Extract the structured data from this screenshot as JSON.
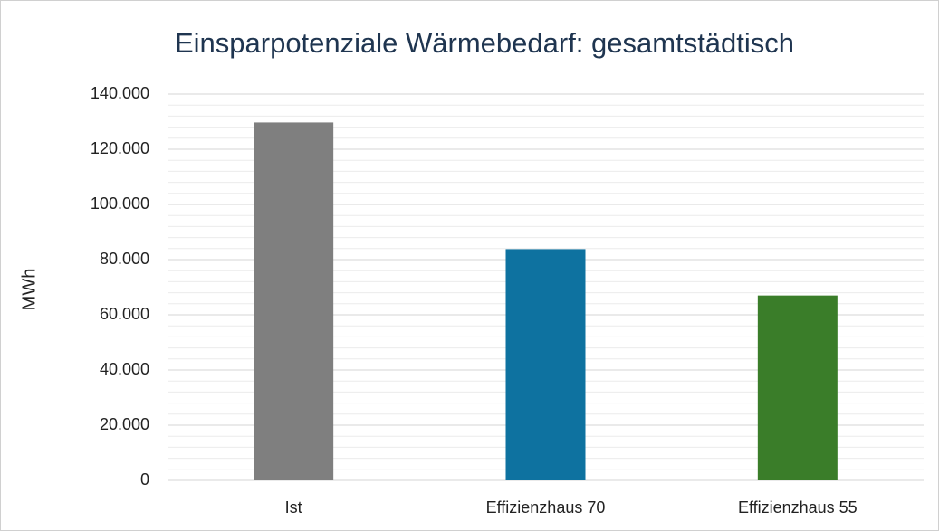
{
  "chart_data": {
    "type": "bar",
    "title": "Einsparpotenziale Wärmebedarf: gesamtstädtisch",
    "y_label": "MWh",
    "categories": [
      "Ist",
      "Effizienzhaus 70",
      "Effizienzhaus 55"
    ],
    "values": [
      129700,
      83800,
      67000
    ],
    "colors": [
      "#7f7f7f",
      "#0e72a0",
      "#3a7d29"
    ],
    "ylim": [
      0,
      140000
    ],
    "yticks": [
      0,
      {
        "value": 20000,
        "label": "20.000"
      },
      {
        "value": 40000,
        "label": "40.000"
      },
      {
        "value": 60000,
        "label": "60.000"
      },
      {
        "value": 80000,
        "label": "80.000"
      },
      {
        "value": 100000,
        "label": "100.000"
      },
      {
        "value": 120000,
        "label": "120.000"
      },
      {
        "value": 140000,
        "label": "140.000"
      }
    ],
    "yticks_minor": [
      4000,
      8000,
      12000,
      16000,
      24000,
      28000,
      32000,
      36000,
      44000,
      48000,
      52000,
      56000,
      64000,
      68000,
      72000,
      76000,
      84000,
      88000,
      92000,
      96000,
      104000,
      108000,
      112000,
      116000,
      124000,
      128000,
      132000,
      136000
    ],
    "grid": true
  }
}
